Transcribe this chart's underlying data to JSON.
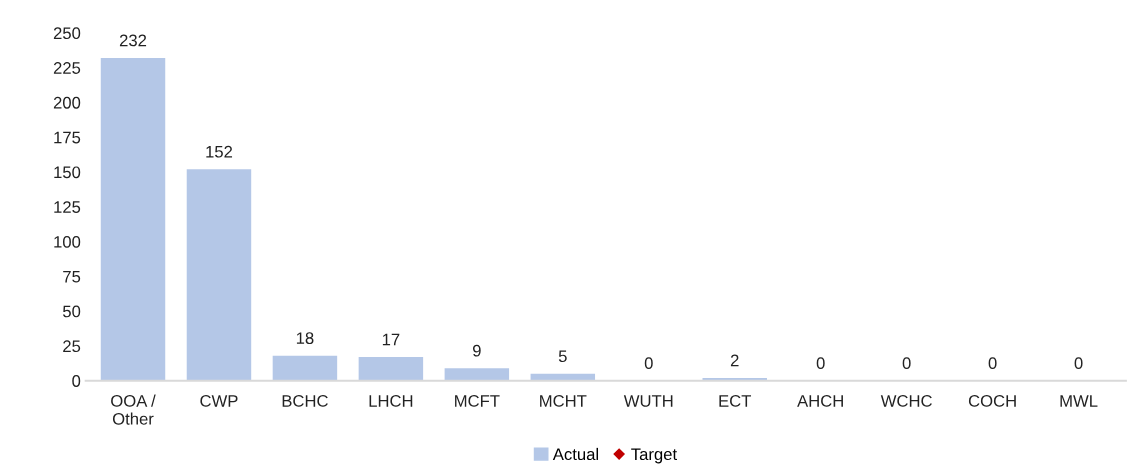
{
  "chart_data": {
    "type": "bar",
    "categories": [
      "OOA /\nOther",
      "CWP",
      "BCHC",
      "LHCH",
      "MCFT",
      "MCHT",
      "WUTH",
      "ECT",
      "AHCH",
      "WCHC",
      "COCH",
      "MWL"
    ],
    "series": [
      {
        "name": "Actual",
        "color": "#b4c7e7",
        "values": [
          232,
          152,
          18,
          17,
          9,
          5,
          0,
          2,
          0,
          0,
          0,
          0
        ]
      },
      {
        "name": "Target",
        "type": "scatter",
        "color": "#c00000",
        "marker": "diamond",
        "values": [
          null,
          null,
          null,
          null,
          null,
          null,
          null,
          null,
          null,
          null,
          null,
          null
        ]
      }
    ],
    "ylim": [
      0,
      250
    ],
    "yticks": [
      0,
      25,
      50,
      75,
      100,
      125,
      150,
      175,
      200,
      225,
      250
    ],
    "data_labels": true,
    "grid": false,
    "legend": "bottom"
  }
}
